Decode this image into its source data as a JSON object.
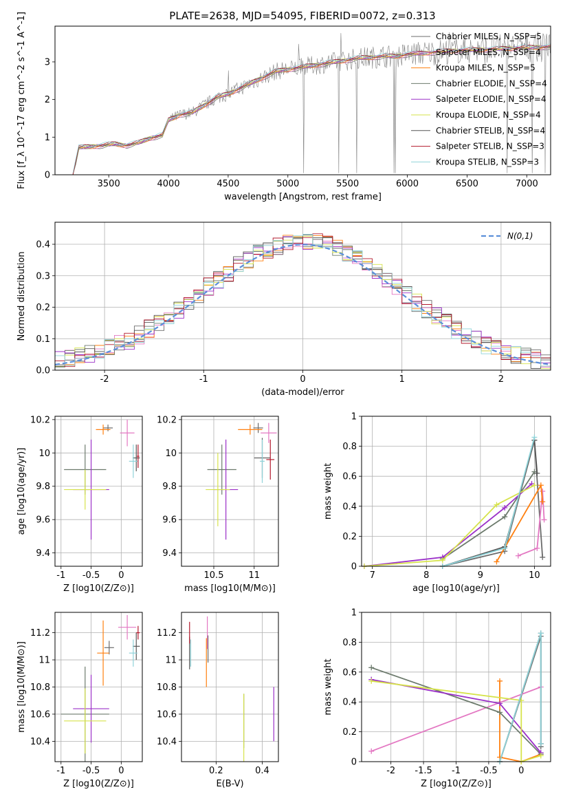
{
  "figure": {
    "title": "PLATE=2638, MJD=54095, FIBERID=0072, z=0.313",
    "series_colors": [
      "#6b6b6b",
      "#e377c2",
      "#ff7f0e",
      "#6c7a6c",
      "#9b30c8",
      "#d6e34a",
      "#555555",
      "#b2182b",
      "#8fd3d9"
    ]
  },
  "chart_data": [
    {
      "id": "spectrum",
      "type": "line",
      "title": "PLATE=2638, MJD=54095, FIBERID=0072, z=0.313",
      "xlabel": "wavelength [Angstrom, rest frame]",
      "ylabel": "Flux [f_λ 10^-17 erg cm^-2 s^-1 A^-1]",
      "xlim": [
        3050,
        7200
      ],
      "ylim": [
        0,
        3.95
      ],
      "xticks": [
        3500,
        4000,
        4500,
        5000,
        5500,
        6000,
        6500,
        7000
      ],
      "yticks": [
        0,
        1,
        2,
        3
      ],
      "grid": false,
      "legend_position": "top-right",
      "data_color": "#808080",
      "model_x": [
        3200,
        3250,
        3350,
        3450,
        3550,
        3650,
        3750,
        3850,
        3950,
        4000,
        4100,
        4200,
        4300,
        4400,
        4500,
        4600,
        4700,
        4800,
        4900,
        5000,
        5100,
        5200,
        5300,
        5400,
        5500,
        5600,
        5700,
        5800,
        5900,
        6000,
        6200,
        6400,
        6600,
        6800,
        7000,
        7200
      ],
      "model_y": [
        0.0,
        0.72,
        0.75,
        0.78,
        0.82,
        0.78,
        0.85,
        0.98,
        1.05,
        1.45,
        1.6,
        1.65,
        1.85,
        2.05,
        2.15,
        2.3,
        2.45,
        2.6,
        2.75,
        2.8,
        2.85,
        2.9,
        2.95,
        3.0,
        3.05,
        3.1,
        3.12,
        3.15,
        3.15,
        3.2,
        3.25,
        3.3,
        3.32,
        3.35,
        3.38,
        3.4
      ],
      "series": [
        {
          "name": "Chabrier MILES, N_SSP=5"
        },
        {
          "name": "Salpeter MILES, N_SSP=4"
        },
        {
          "name": "Kroupa MILES, N_SSP=5"
        },
        {
          "name": "Chabrier ELODIE, N_SSP=4"
        },
        {
          "name": "Salpeter ELODIE, N_SSP=4"
        },
        {
          "name": "Kroupa ELODIE, N_SSP=4"
        },
        {
          "name": "Chabrier STELIB, N_SSP=4"
        },
        {
          "name": "Salpeter STELIB, N_SSP=3"
        },
        {
          "name": "Kroupa STELIB, N_SSP=3"
        }
      ]
    },
    {
      "id": "residuals",
      "type": "line",
      "xlabel": "(data-model)/error",
      "ylabel": "Normed distribution",
      "xlim": [
        -2.5,
        2.5
      ],
      "ylim": [
        0,
        0.47
      ],
      "xticks": [
        -2,
        -1,
        0,
        1,
        2
      ],
      "yticks": [
        0.0,
        0.1,
        0.2,
        0.3,
        0.4
      ],
      "grid": true,
      "legend_position": "top-right",
      "normal_curve_label": "N(0,1)",
      "normal_curve_color": "#5b8fd9"
    },
    {
      "id": "age_vs_Z",
      "type": "scatter",
      "xlabel": "Z [log10(Z/Z⊙)]",
      "ylabel": "age [log10(age/yr)]",
      "xlim": [
        -1.1,
        0.35
      ],
      "ylim": [
        9.32,
        10.22
      ],
      "xticks": [
        -1.0,
        -0.5,
        0.0
      ],
      "yticks": [
        9.4,
        9.6,
        9.8,
        10.0,
        10.2
      ],
      "grid": true,
      "points": [
        {
          "x": -0.22,
          "xerr": 0.08,
          "y": 10.15,
          "yerr": 0.02,
          "color": 0
        },
        {
          "x": 0.1,
          "xerr": 0.12,
          "y": 10.12,
          "yerr": 0.08,
          "color": 1
        },
        {
          "x": -0.3,
          "xerr": 0.12,
          "y": 10.14,
          "yerr": 0.03,
          "color": 2
        },
        {
          "x": -0.6,
          "xerr": 0.35,
          "y": 9.9,
          "yerr": 0.15,
          "color": 3
        },
        {
          "x": -0.5,
          "xerr": 0.3,
          "y": 9.78,
          "yerr": 0.3,
          "color": 4
        },
        {
          "x": -0.6,
          "xerr": 0.35,
          "y": 9.78,
          "yerr": 0.12,
          "color": 5
        },
        {
          "x": 0.25,
          "xerr": 0.06,
          "y": 9.97,
          "yerr": 0.08,
          "color": 6
        },
        {
          "x": 0.28,
          "xerr": 0.02,
          "y": 9.98,
          "yerr": 0.07,
          "color": 7
        },
        {
          "x": 0.2,
          "xerr": 0.07,
          "y": 9.95,
          "yerr": 0.1,
          "color": 8
        }
      ]
    },
    {
      "id": "age_vs_mass",
      "type": "scatter",
      "xlabel": "mass [log10(M/M⊙)]",
      "ylabel": "",
      "xlim": [
        10.1,
        11.3
      ],
      "ylim": [
        9.32,
        10.22
      ],
      "xticks": [
        10.5,
        11.0
      ],
      "yticks": [
        9.4,
        9.6,
        9.8,
        10.0,
        10.2
      ],
      "grid": true,
      "points": [
        {
          "x": 11.05,
          "xerr": 0.06,
          "y": 10.15,
          "yerr": 0.03,
          "color": 0
        },
        {
          "x": 11.18,
          "xerr": 0.1,
          "y": 10.12,
          "yerr": 0.06,
          "color": 1
        },
        {
          "x": 10.95,
          "xerr": 0.15,
          "y": 10.14,
          "yerr": 0.03,
          "color": 2
        },
        {
          "x": 10.6,
          "xerr": 0.18,
          "y": 9.9,
          "yerr": 0.15,
          "color": 3
        },
        {
          "x": 10.65,
          "xerr": 0.15,
          "y": 9.78,
          "yerr": 0.3,
          "color": 4
        },
        {
          "x": 10.55,
          "xerr": 0.15,
          "y": 9.78,
          "yerr": 0.22,
          "color": 5
        },
        {
          "x": 11.1,
          "xerr": 0.1,
          "y": 9.97,
          "yerr": 0.12,
          "color": 6
        },
        {
          "x": 11.2,
          "xerr": 0.05,
          "y": 9.96,
          "yerr": 0.12,
          "color": 7
        },
        {
          "x": 11.1,
          "xerr": 0.03,
          "y": 9.95,
          "yerr": 0.13,
          "color": 8
        }
      ]
    },
    {
      "id": "weight_vs_age",
      "type": "line",
      "xlabel": "age [log10(age/yr)]",
      "ylabel": "mass weight",
      "xlim": [
        6.8,
        10.3
      ],
      "ylim": [
        0,
        1.0
      ],
      "xticks": [
        7,
        8,
        9,
        10
      ],
      "yticks": [
        0.0,
        0.2,
        0.4,
        0.6,
        0.8,
        1.0
      ],
      "grid": true,
      "series": [
        {
          "color": 0,
          "x": [
            8.3,
            9.45,
            10.0,
            10.15
          ],
          "y": [
            0.0,
            0.1,
            0.84,
            0.06
          ]
        },
        {
          "color": 1,
          "x": [
            9.7,
            10.05,
            10.15,
            10.18
          ],
          "y": [
            0.07,
            0.12,
            0.5,
            0.31
          ]
        },
        {
          "color": 2,
          "x": [
            9.3,
            10.12,
            10.15
          ],
          "y": [
            0.03,
            0.54,
            0.43
          ]
        },
        {
          "color": 3,
          "x": [
            8.3,
            9.45,
            10.0
          ],
          "y": [
            0.05,
            0.33,
            0.63
          ]
        },
        {
          "color": 4,
          "x": [
            6.85,
            8.3,
            9.45,
            9.95
          ],
          "y": [
            0.0,
            0.06,
            0.39,
            0.55
          ]
        },
        {
          "color": 5,
          "x": [
            6.85,
            8.3,
            9.3,
            10.0
          ],
          "y": [
            0.0,
            0.04,
            0.41,
            0.54
          ]
        },
        {
          "color": 6,
          "x": [
            8.3,
            9.45,
            10.0,
            10.05
          ],
          "y": [
            0.0,
            0.13,
            0.84,
            0.62
          ]
        },
        {
          "color": 8,
          "x": [
            8.3,
            9.45,
            10.0
          ],
          "y": [
            0.0,
            0.12,
            0.86
          ]
        }
      ]
    },
    {
      "id": "mass_vs_Z",
      "type": "scatter",
      "xlabel": "Z [log10(Z/Z⊙)]",
      "ylabel": "mass [log10(M/M⊙)]",
      "xlim": [
        -1.1,
        0.35
      ],
      "ylim": [
        10.25,
        11.35
      ],
      "xticks": [
        -1.0,
        -0.5,
        0.0
      ],
      "yticks": [
        10.4,
        10.6,
        10.8,
        11.0,
        11.2
      ],
      "grid": true,
      "points": [
        {
          "x": -0.2,
          "xerr": 0.08,
          "y": 11.09,
          "yerr": 0.05,
          "color": 0
        },
        {
          "x": 0.1,
          "xerr": 0.15,
          "y": 11.24,
          "yerr": 0.09,
          "color": 1
        },
        {
          "x": -0.3,
          "xerr": 0.1,
          "y": 11.05,
          "yerr": 0.24,
          "color": 2
        },
        {
          "x": -0.6,
          "xerr": 0.4,
          "y": 10.6,
          "yerr": 0.35,
          "color": 3
        },
        {
          "x": -0.5,
          "xerr": 0.3,
          "y": 10.64,
          "yerr": 0.25,
          "color": 4
        },
        {
          "x": -0.6,
          "xerr": 0.35,
          "y": 10.55,
          "yerr": 0.24,
          "color": 5
        },
        {
          "x": 0.25,
          "xerr": 0.06,
          "y": 11.1,
          "yerr": 0.1,
          "color": 6
        },
        {
          "x": 0.28,
          "xerr": 0.03,
          "y": 11.2,
          "yerr": 0.05,
          "color": 7
        },
        {
          "x": 0.2,
          "xerr": 0.07,
          "y": 11.05,
          "yerr": 0.1,
          "color": 8
        }
      ]
    },
    {
      "id": "mass_vs_EBV",
      "type": "scatter",
      "xlabel": "E(B-V)",
      "ylabel": "",
      "xlim": [
        0.05,
        0.47
      ],
      "ylim": [
        10.25,
        11.35
      ],
      "xticks": [
        0.2,
        0.4
      ],
      "yticks": [
        10.4,
        10.6,
        10.8,
        11.0,
        11.2
      ],
      "grid": true,
      "points": [
        {
          "x": 0.165,
          "y": 11.08,
          "yerr": 0.1,
          "color": 0
        },
        {
          "x": 0.162,
          "y": 11.2,
          "yerr": 0.12,
          "color": 1
        },
        {
          "x": 0.158,
          "y": 10.98,
          "yerr": 0.18,
          "color": 2
        },
        {
          "x": 0.32,
          "y": 10.55,
          "yerr": 0.2,
          "color": 3
        },
        {
          "x": 0.45,
          "y": 10.6,
          "yerr": 0.2,
          "color": 4
        },
        {
          "x": 0.32,
          "y": 10.5,
          "yerr": 0.25,
          "color": 5
        },
        {
          "x": 0.085,
          "y": 11.05,
          "yerr": 0.12,
          "color": 6
        },
        {
          "x": 0.085,
          "y": 11.2,
          "yerr": 0.08,
          "color": 7
        },
        {
          "x": 0.09,
          "y": 11.05,
          "yerr": 0.1,
          "color": 8
        }
      ]
    },
    {
      "id": "weight_vs_Z",
      "type": "line",
      "xlabel": "Z [log10(Z/Z⊙)]",
      "ylabel": "mass weight",
      "xlim": [
        -2.45,
        0.45
      ],
      "ylim": [
        0,
        1.0
      ],
      "xticks": [
        -2.0,
        -1.5,
        -1.0,
        -0.5,
        0.0
      ],
      "yticks": [
        0.0,
        0.2,
        0.4,
        0.6,
        0.8,
        1.0
      ],
      "grid": true,
      "series": [
        {
          "color": 0,
          "x": [
            -0.33,
            0.3,
            0.3
          ],
          "y": [
            0.0,
            0.84,
            0.1
          ]
        },
        {
          "color": 1,
          "x": [
            -2.3,
            0.3
          ],
          "y": [
            0.07,
            0.5
          ]
        },
        {
          "color": 2,
          "x": [
            -0.33,
            -0.33,
            0.0,
            0.3
          ],
          "y": [
            0.54,
            0.03,
            0.0,
            0.05
          ]
        },
        {
          "color": 3,
          "x": [
            -2.3,
            -0.33,
            0.3
          ],
          "y": [
            0.63,
            0.33,
            0.05
          ]
        },
        {
          "color": 4,
          "x": [
            -2.3,
            -0.33,
            0.3
          ],
          "y": [
            0.55,
            0.39,
            0.06
          ]
        },
        {
          "color": 5,
          "x": [
            -2.3,
            0.0,
            0.0,
            0.3
          ],
          "y": [
            0.54,
            0.41,
            0.0,
            0.04
          ]
        },
        {
          "color": 6,
          "x": [
            -0.33,
            0.3,
            0.3
          ],
          "y": [
            0.0,
            0.86,
            0.12
          ]
        },
        {
          "color": 8,
          "x": [
            -0.33,
            0.3,
            0.3
          ],
          "y": [
            0.0,
            0.86,
            0.12
          ]
        }
      ]
    }
  ]
}
